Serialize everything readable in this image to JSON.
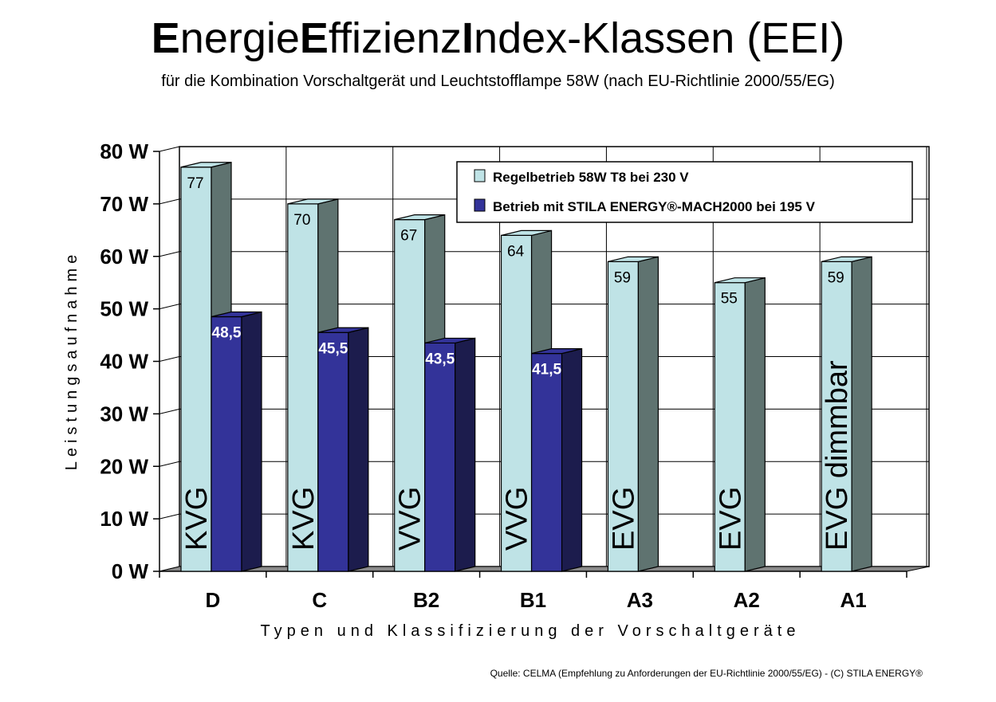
{
  "title_parts": [
    {
      "text": "E",
      "bold": true
    },
    {
      "text": "nergie",
      "bold": false
    },
    {
      "text": "E",
      "bold": true
    },
    {
      "text": "ffizienz",
      "bold": false
    },
    {
      "text": "I",
      "bold": true
    },
    {
      "text": "ndex-Klassen (EEI)",
      "bold": false
    }
  ],
  "subtitle": "für die Kombination Vorschaltgerät und Leuchtstofflampe 58W (nach EU-Richtlinie 2000/55/EG)",
  "source": "Quelle: CELMA (Empfehlung zu Anforderungen der EU-Richtlinie 2000/55/EG)  - (C) STILA ENERGY®",
  "chart_data": {
    "type": "bar",
    "title": "EnergieEffizienzIndex-Klassen (EEI)",
    "subtitle": "für die Kombination Vorschaltgerät und Leuchtstofflampe 58W (nach EU-Richtlinie 2000/55/EG)",
    "xlabel": "Typen und Klassifizierung der Vorschaltgeräte",
    "ylabel": "Leistungsaufnahme",
    "ylim": [
      0,
      80
    ],
    "yticks": [
      0,
      10,
      20,
      30,
      40,
      50,
      60,
      70,
      80
    ],
    "ytick_labels": [
      "0 W",
      "10 W",
      "20 W",
      "30 W",
      "40 W",
      "50 W",
      "60 W",
      "70 W",
      "80 W"
    ],
    "categories": [
      "D",
      "C",
      "B2",
      "B1",
      "A3",
      "A2",
      "A1"
    ],
    "type_labels": [
      "KVG",
      "KVG",
      "VVG",
      "VVG",
      "EVG",
      "EVG",
      "EVG dimmbar"
    ],
    "grid": true,
    "legend_position": "top-right",
    "series": [
      {
        "name": "Regelbetrieb 58W T8 bei 230 V",
        "values": [
          77,
          70,
          67,
          64,
          59,
          55,
          59
        ],
        "labels": [
          "77",
          "70",
          "67",
          "64",
          "59",
          "55",
          "59"
        ],
        "color": "#bfe3e6",
        "side_color": "#5f7370"
      },
      {
        "name": "Betrieb mit STILA ENERGY®-MACH2000 bei 195 V",
        "values": [
          48.5,
          45.5,
          43.5,
          41.5,
          null,
          null,
          null
        ],
        "labels": [
          "48,5",
          "45,5",
          "43,5",
          "41,5",
          "",
          "",
          ""
        ],
        "color": "#333399",
        "side_color": "#1c1c4d"
      }
    ]
  }
}
